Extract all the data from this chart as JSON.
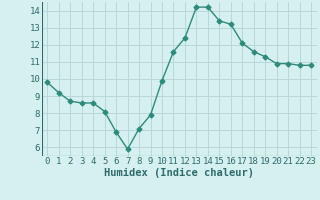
{
  "x": [
    0,
    1,
    2,
    3,
    4,
    5,
    6,
    7,
    8,
    9,
    10,
    11,
    12,
    13,
    14,
    15,
    16,
    17,
    18,
    19,
    20,
    21,
    22,
    23
  ],
  "y": [
    9.8,
    9.2,
    8.7,
    8.6,
    8.6,
    8.1,
    6.9,
    5.9,
    7.1,
    7.9,
    9.9,
    11.6,
    12.4,
    14.2,
    14.2,
    13.4,
    13.2,
    12.1,
    11.6,
    11.3,
    10.9,
    10.9,
    10.8,
    10.8
  ],
  "line_color": "#2e8b7a",
  "marker": "D",
  "marker_size": 2.5,
  "bg_color": "#d6f0f0",
  "grid_color": "#b8d8d8",
  "xlabel": "Humidex (Indice chaleur)",
  "xlim": [
    -0.5,
    23.5
  ],
  "ylim": [
    5.5,
    14.5
  ],
  "yticks": [
    6,
    7,
    8,
    9,
    10,
    11,
    12,
    13,
    14
  ],
  "xticks": [
    0,
    1,
    2,
    3,
    4,
    5,
    6,
    7,
    8,
    9,
    10,
    11,
    12,
    13,
    14,
    15,
    16,
    17,
    18,
    19,
    20,
    21,
    22,
    23
  ],
  "tick_color": "#2e6b6b",
  "label_fontsize": 6.5,
  "xlabel_fontsize": 7.5,
  "xlabel_fontweight": "bold"
}
